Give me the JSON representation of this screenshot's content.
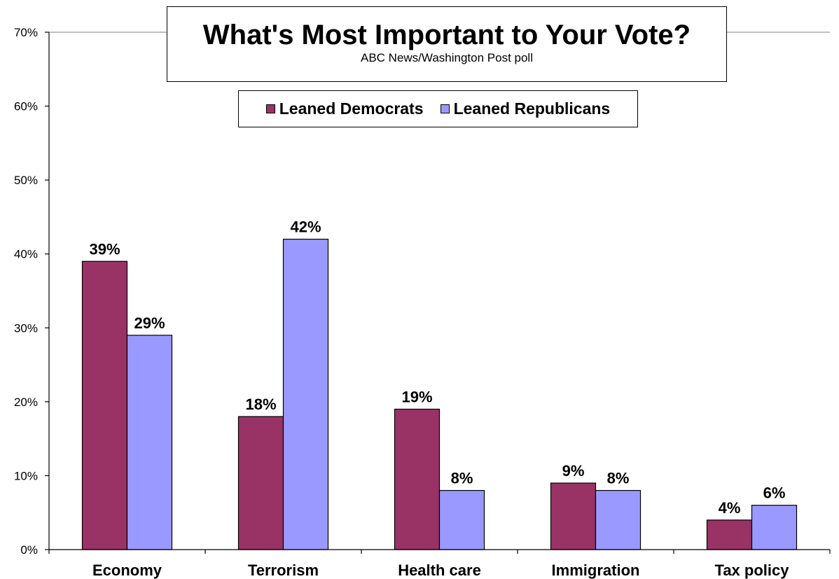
{
  "chart_data": {
    "type": "bar",
    "title": "What's Most Important to Your Vote?",
    "subtitle": "ABC News/Washington  Post poll",
    "categories": [
      "Economy",
      "Terrorism",
      "Health care",
      "Immigration",
      "Tax policy"
    ],
    "series": [
      {
        "name": "Leaned Democrats",
        "color": "#993366",
        "values": [
          39,
          18,
          19,
          9,
          4
        ],
        "labels": [
          "39%",
          "18%",
          "19%",
          "9%",
          "4%"
        ]
      },
      {
        "name": "Leaned Republicans",
        "color": "#9999ff",
        "values": [
          29,
          42,
          8,
          8,
          6
        ],
        "labels": [
          "29%",
          "42%",
          "8%",
          "8%",
          "6%"
        ]
      }
    ],
    "yticks": [
      "0%",
      "10%",
      "20%",
      "30%",
      "40%",
      "50%",
      "60%",
      "70%"
    ],
    "ylim": [
      0,
      70
    ],
    "grid": "top line only",
    "legend_position": "top-center"
  }
}
